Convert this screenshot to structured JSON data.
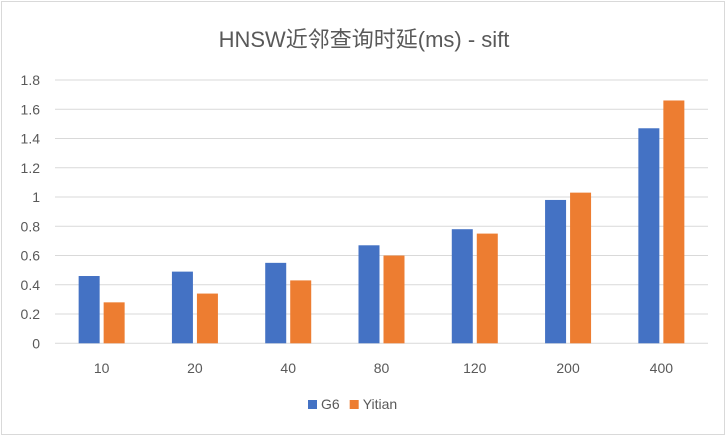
{
  "chart_data": {
    "type": "bar",
    "title": "HNSW近邻查询时延(ms) - sift",
    "xlabel": "",
    "ylabel": "",
    "categories": [
      "10",
      "20",
      "40",
      "80",
      "120",
      "200",
      "400"
    ],
    "series": [
      {
        "name": "G6",
        "color": "#4472c4",
        "values": [
          0.46,
          0.49,
          0.55,
          0.67,
          0.78,
          0.98,
          1.47
        ]
      },
      {
        "name": "Yitian",
        "color": "#ed7d31",
        "values": [
          0.28,
          0.34,
          0.43,
          0.6,
          0.75,
          1.03,
          1.66
        ]
      }
    ],
    "ylim": [
      0,
      1.8
    ],
    "yticks": [
      "0",
      "0.2",
      "0.4",
      "0.6",
      "0.8",
      "1",
      "1.2",
      "1.4",
      "1.6",
      "1.8"
    ],
    "grid": true,
    "legend": "bottom"
  }
}
